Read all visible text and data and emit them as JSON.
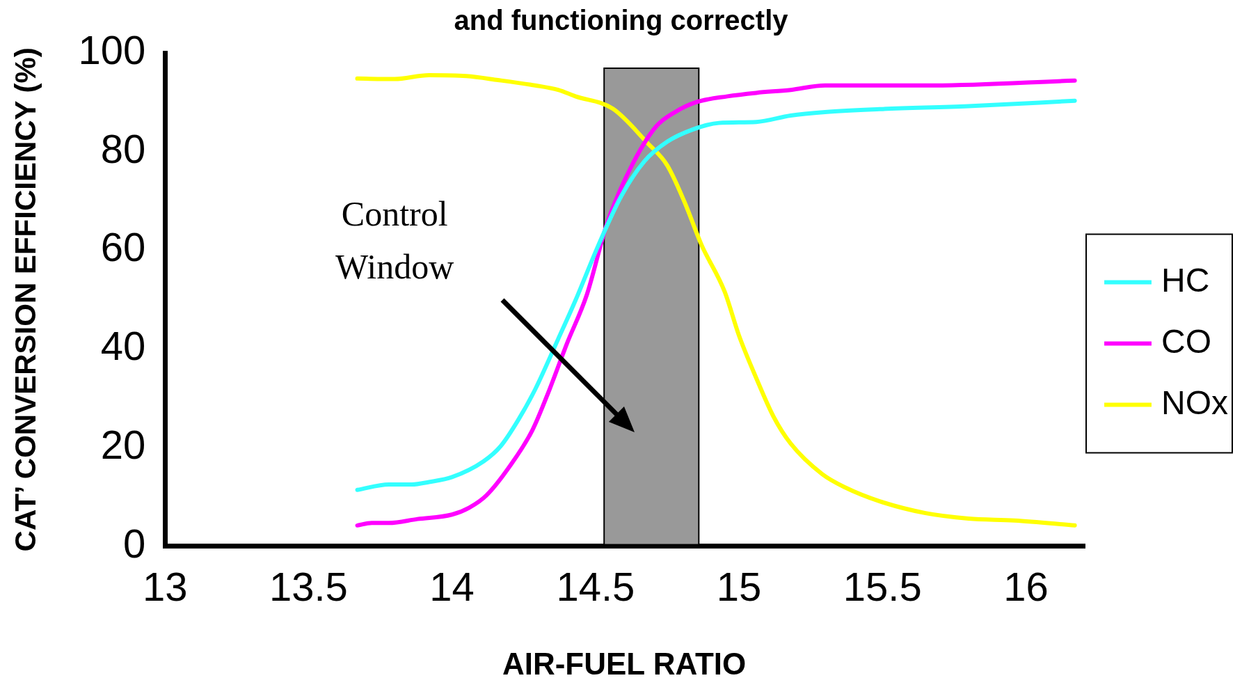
{
  "chart_data": {
    "type": "line",
    "title": "and functioning correctly",
    "xlabel": "AIR-FUEL RATIO",
    "ylabel": "CAT’ CONVERSION EFFICIENCY (%)",
    "xlim": [
      13,
      16.2
    ],
    "xticks": [
      13,
      13.5,
      14,
      14.5,
      15,
      15.5,
      16
    ],
    "ylim": [
      0,
      100
    ],
    "yticks": [
      0,
      20,
      40,
      60,
      80,
      100
    ],
    "grid": false,
    "legend": "right",
    "marker": "none",
    "line_style": "solid",
    "series": [
      {
        "name": "HC",
        "color": "#33ffff",
        "x": [
          13.67,
          13.78,
          13.86,
          13.92,
          14.0,
          14.11,
          14.17,
          14.23,
          14.29,
          14.37,
          14.43,
          14.51,
          14.59,
          14.67,
          14.75,
          14.84,
          14.93,
          15.06,
          15.18,
          15.3,
          15.49,
          15.8,
          16.17
        ],
        "values": [
          11.4,
          12.5,
          12.5,
          13,
          14,
          17.2,
          20.3,
          25.5,
          31.8,
          42,
          49.8,
          61,
          71,
          78,
          82,
          84.5,
          85.8,
          86,
          87.3,
          88,
          88.6,
          89.2,
          90.3
        ]
      },
      {
        "name": "CO",
        "color": "#ff00ff",
        "x": [
          13.67,
          13.72,
          13.78,
          13.88,
          14.0,
          14.06,
          14.12,
          14.2,
          14.28,
          14.34,
          14.4,
          14.47,
          14.54,
          14.62,
          14.71,
          14.78,
          14.85,
          14.96,
          15.06,
          15.18,
          15.3,
          15.68,
          16.17
        ],
        "values": [
          4.2,
          4.7,
          4.7,
          5.5,
          6.4,
          7.8,
          10.3,
          16.1,
          23.5,
          31.8,
          41,
          51,
          65.4,
          76.4,
          85,
          88.1,
          90,
          91.2,
          91.9,
          92.5,
          93.4,
          93.4,
          94.4
        ]
      },
      {
        "name": "NOx",
        "color": "#ffff00",
        "x": [
          13.67,
          13.8,
          13.92,
          14.05,
          14.16,
          14.29,
          14.37,
          14.43,
          14.56,
          14.68,
          14.75,
          14.81,
          14.87,
          14.95,
          15.0,
          15.06,
          15.12,
          15.18,
          15.29,
          15.37,
          15.49,
          15.65,
          15.8,
          15.96,
          16.17
        ],
        "values": [
          94.8,
          94.7,
          95.5,
          95.3,
          94.5,
          93.4,
          92.5,
          91.2,
          88.7,
          81.8,
          77.2,
          69.8,
          61,
          51.6,
          42.7,
          34.1,
          26.3,
          20.8,
          14.6,
          11.9,
          9.1,
          6.7,
          5.6,
          5.2,
          4.2
        ]
      }
    ],
    "bands": [
      {
        "axis": "x",
        "from": 14.53,
        "to": 14.86,
        "color": "#999999"
      }
    ],
    "annotations": [
      "Control Window"
    ]
  }
}
